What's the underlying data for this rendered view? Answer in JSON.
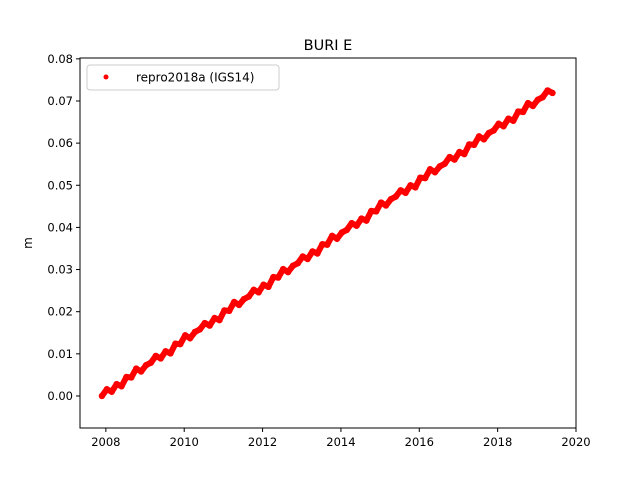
{
  "chart_data": {
    "type": "scatter",
    "title": "BURI E",
    "xlabel": "",
    "ylabel": "m",
    "xlim": [
      2007.34,
      2020.0
    ],
    "ylim": [
      -0.0076,
      0.0802
    ],
    "xticks": [
      2008,
      2010,
      2012,
      2014,
      2016,
      2018,
      2020
    ],
    "xtick_labels": [
      "2008",
      "2010",
      "2012",
      "2014",
      "2016",
      "2018",
      "2020"
    ],
    "yticks": [
      0.0,
      0.01,
      0.02,
      0.03,
      0.04,
      0.05,
      0.06,
      0.07,
      0.08
    ],
    "ytick_labels": [
      "0.00",
      "0.01",
      "0.02",
      "0.03",
      "0.04",
      "0.05",
      "0.06",
      "0.07",
      "0.08"
    ],
    "grid": false,
    "legend_placement": "upper-left",
    "series": [
      {
        "name": "repro2018a (IGS14)",
        "color": "#ff0000",
        "marker": "dot",
        "x": [
          2007.9,
          2008.025,
          2008.15,
          2008.275,
          2008.4,
          2008.525,
          2008.65,
          2008.775,
          2008.9,
          2009.025,
          2009.15,
          2009.275,
          2009.4,
          2009.525,
          2009.65,
          2009.775,
          2009.9,
          2010.025,
          2010.15,
          2010.275,
          2010.4,
          2010.525,
          2010.65,
          2010.775,
          2010.9,
          2011.025,
          2011.15,
          2011.275,
          2011.4,
          2011.525,
          2011.65,
          2011.775,
          2011.9,
          2012.025,
          2012.15,
          2012.275,
          2012.4,
          2012.525,
          2012.65,
          2012.775,
          2012.9,
          2013.025,
          2013.15,
          2013.275,
          2013.4,
          2013.525,
          2013.65,
          2013.775,
          2013.9,
          2014.025,
          2014.15,
          2014.275,
          2014.4,
          2014.525,
          2014.65,
          2014.775,
          2014.9,
          2015.025,
          2015.15,
          2015.275,
          2015.4,
          2015.525,
          2015.65,
          2015.775,
          2015.9,
          2016.025,
          2016.15,
          2016.275,
          2016.4,
          2016.525,
          2016.65,
          2016.775,
          2016.9,
          2017.025,
          2017.15,
          2017.275,
          2017.4,
          2017.525,
          2017.65,
          2017.775,
          2017.9,
          2018.025,
          2018.15,
          2018.275,
          2018.4,
          2018.525,
          2018.65,
          2018.775,
          2018.9,
          2019.025,
          2019.15,
          2019.275,
          2019.4
        ],
        "y": [
          0.0,
          0.0016,
          0.001,
          0.0028,
          0.0023,
          0.0045,
          0.0044,
          0.0065,
          0.0058,
          0.0073,
          0.0079,
          0.0095,
          0.0089,
          0.0106,
          0.0101,
          0.0124,
          0.0123,
          0.0144,
          0.0137,
          0.0152,
          0.0158,
          0.0173,
          0.0167,
          0.0185,
          0.018,
          0.0203,
          0.0202,
          0.0223,
          0.0216,
          0.023,
          0.0236,
          0.0252,
          0.0246,
          0.0264,
          0.0259,
          0.0282,
          0.0281,
          0.0301,
          0.0294,
          0.0309,
          0.0315,
          0.0331,
          0.0325,
          0.0343,
          0.0338,
          0.036,
          0.0359,
          0.038,
          0.0373,
          0.0388,
          0.0394,
          0.041,
          0.0404,
          0.0421,
          0.0416,
          0.0439,
          0.0438,
          0.0459,
          0.0452,
          0.0467,
          0.0473,
          0.0488,
          0.0482,
          0.05,
          0.0495,
          0.0518,
          0.0517,
          0.0538,
          0.0531,
          0.0545,
          0.0551,
          0.0567,
          0.0561,
          0.0579,
          0.0574,
          0.0597,
          0.0596,
          0.0616,
          0.0609,
          0.0624,
          0.063,
          0.0646,
          0.064,
          0.0658,
          0.0653,
          0.0675,
          0.0674,
          0.0695,
          0.0688,
          0.0703,
          0.0709,
          0.0725,
          0.0719
        ]
      }
    ]
  }
}
